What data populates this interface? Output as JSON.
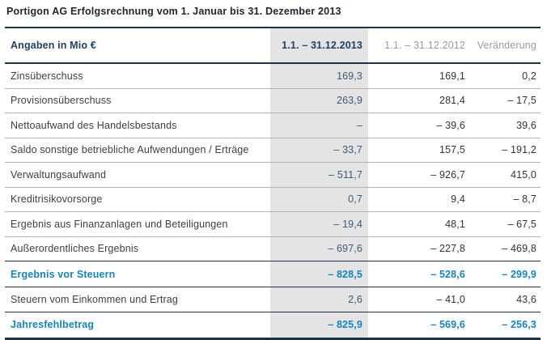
{
  "title": "Portigon AG Erfolgsrechnung vom 1. Januar bis 31. Dezember 2013",
  "table": {
    "columns": {
      "label": "Angaben in Mio €",
      "period_2013": "1.1. – 31.12.2013",
      "period_2012": "1.1. – 31.12.2012",
      "change": "Veränderung"
    },
    "rows": [
      {
        "label": "Zinsüberschuss",
        "v2013": "169,3",
        "v2012": "169,1",
        "change": "0,2",
        "emphasis": false
      },
      {
        "label": "Provisionsüberschuss",
        "v2013": "263,9",
        "v2012": "281,4",
        "change": "– 17,5",
        "emphasis": false
      },
      {
        "label": "Nettoaufwand des Handelsbestands",
        "v2013": "–",
        "v2012": "– 39,6",
        "change": "39,6",
        "emphasis": false
      },
      {
        "label": "Saldo sonstige betriebliche Aufwendungen / Erträge",
        "v2013": "– 33,7",
        "v2012": "157,5",
        "change": "– 191,2",
        "emphasis": false
      },
      {
        "label": "Verwaltungsaufwand",
        "v2013": "– 511,7",
        "v2012": "– 926,7",
        "change": "415,0",
        "emphasis": false
      },
      {
        "label": "Kreditrisikovorsorge",
        "v2013": "0,7",
        "v2012": "9,4",
        "change": "– 8,7",
        "emphasis": false
      },
      {
        "label": "Ergebnis aus Finanzanlagen und Beteiligungen",
        "v2013": "– 19,4",
        "v2012": "48,1",
        "change": "– 67,5",
        "emphasis": false
      },
      {
        "label": "Außerordentliches Ergebnis",
        "v2013": "– 697,6",
        "v2012": "– 227,8",
        "change": "– 469,8",
        "emphasis": false
      },
      {
        "label": "Ergebnis vor Steuern",
        "v2013": "– 828,5",
        "v2012": "– 528,6",
        "change": "– 299,9",
        "emphasis": true
      },
      {
        "label": "Steuern vom Einkommen und Ertrag",
        "v2013": "2,6",
        "v2012": "– 41,0",
        "change": "43,6",
        "emphasis": false
      },
      {
        "label": "Jahresfehlbetrag",
        "v2013": "– 825,9",
        "v2012": "– 569,6",
        "change": "– 256,3",
        "emphasis": true
      }
    ]
  },
  "colors": {
    "accent_blue": "#1285c2",
    "header_navy": "#1d4265",
    "column_highlight_bg": "#e4e4e4",
    "dark_rule": "#1c3246",
    "light_rule": "#b3b3b3",
    "value_2013_text": "#3c5a77",
    "body_text": "#3f3f3f",
    "gray_header_text": "#9b9b9b"
  }
}
